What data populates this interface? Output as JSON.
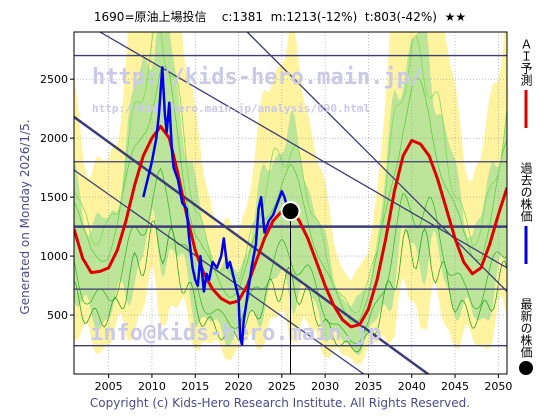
{
  "header": {
    "title": "1690=原油上場投信",
    "current": "c:1381",
    "mean": "m:1213(-12%)",
    "low": "t:803(-42%)",
    "stars": "★★"
  },
  "side_note": "Generated on Monday 2026/1/5.",
  "footer": "Copyright (c) Kids-Hero Research Institute. All Rights Reserved.",
  "watermarks": [
    "http://kids-hero.main.jp/",
    "http://kids-hero.main.jp/analysis/690.html",
    "info@kids-hero.main.jp"
  ],
  "legend": [
    {
      "label": "ＡＩ予測",
      "color": "#e00000"
    },
    {
      "label": "過去の株価",
      "color": "#0000ee"
    },
    {
      "label": "最新の株価",
      "color": "#000000"
    }
  ],
  "chart_data": {
    "type": "line",
    "title": "1690=原油上場投信",
    "xlim": [
      2001,
      2051
    ],
    "ylim": [
      0,
      2900
    ],
    "x_ticks": [
      2005,
      2010,
      2015,
      2020,
      2025,
      2030,
      2035,
      2040,
      2045,
      2050
    ],
    "y_ticks": [
      500,
      1000,
      1500,
      2000,
      2500
    ],
    "grid": true,
    "legend_position": "right-vertical",
    "colors": {
      "forecast": "#e00000",
      "history": "#0000ee",
      "latest": "#000000",
      "band": "#bde59a",
      "band_outer": "#fff3a0"
    },
    "series": [
      {
        "name": "ＡＩ予測",
        "x": [
          2001,
          2002,
          2003,
          2004,
          2005,
          2006,
          2007,
          2008,
          2009,
          2010,
          2011,
          2012,
          2013,
          2014,
          2015,
          2016,
          2017,
          2018,
          2019,
          2020,
          2021,
          2022,
          2023,
          2024,
          2025,
          2026,
          2027,
          2028,
          2029,
          2030,
          2031,
          2032,
          2033,
          2034,
          2035,
          2036,
          2037,
          2038,
          2039,
          2040,
          2041,
          2042,
          2043,
          2044,
          2045,
          2046,
          2047,
          2048,
          2049,
          2050,
          2051
        ],
        "values": [
          1230,
          980,
          860,
          870,
          900,
          1050,
          1300,
          1600,
          1850,
          2000,
          2100,
          2000,
          1700,
          1350,
          1050,
          850,
          720,
          640,
          600,
          620,
          750,
          950,
          1150,
          1300,
          1380,
          1400,
          1300,
          1150,
          950,
          750,
          580,
          460,
          400,
          420,
          550,
          800,
          1150,
          1550,
          1850,
          1980,
          1950,
          1850,
          1650,
          1400,
          1150,
          950,
          850,
          900,
          1100,
          1350,
          1580
        ]
      },
      {
        "name": "過去の株価",
        "x": [
          2009.0,
          2009.5,
          2010.0,
          2010.5,
          2010.8,
          2011.0,
          2011.2,
          2011.5,
          2011.7,
          2012.0,
          2012.3,
          2012.5,
          2013.0,
          2013.5,
          2014.0,
          2014.3,
          2014.7,
          2015.0,
          2015.3,
          2015.6,
          2016.0,
          2016.3,
          2016.6,
          2017.0,
          2017.5,
          2018.0,
          2018.3,
          2018.7,
          2019.0,
          2019.5,
          2020.0,
          2020.2,
          2020.4,
          2020.6,
          2020.8,
          2021.0,
          2021.5,
          2022.0,
          2022.3,
          2022.6,
          2023.0,
          2023.5,
          2024.0,
          2024.5,
          2025.0,
          2025.3,
          2025.6,
          2025.9
        ],
        "values": [
          1500,
          1650,
          1800,
          2000,
          2200,
          2400,
          2600,
          2200,
          2050,
          2300,
          1900,
          1750,
          1650,
          1450,
          1400,
          1150,
          900,
          800,
          750,
          1000,
          700,
          850,
          800,
          950,
          900,
          1000,
          1150,
          900,
          950,
          800,
          650,
          300,
          250,
          450,
          550,
          650,
          900,
          1100,
          1400,
          1500,
          1200,
          1300,
          1350,
          1450,
          1550,
          1500,
          1420,
          1350
        ]
      }
    ],
    "latest_point": {
      "x": 2026.0,
      "y": 1381
    }
  }
}
